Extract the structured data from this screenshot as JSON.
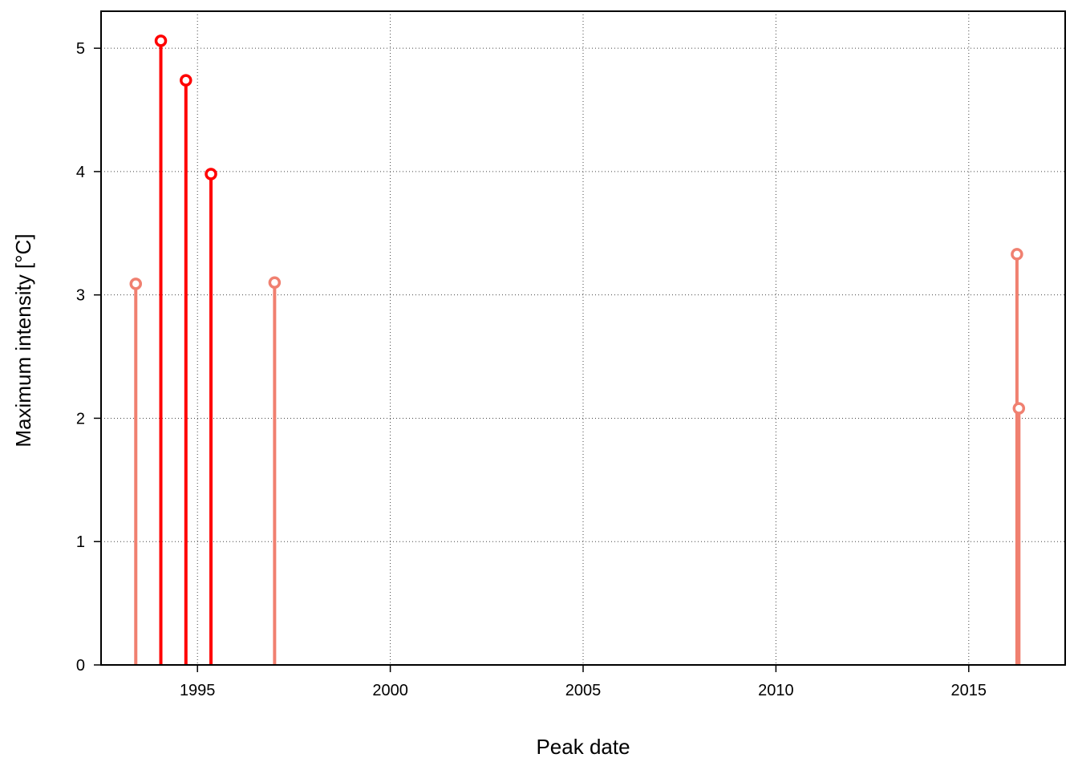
{
  "chart_data": {
    "type": "lollipop",
    "title": "",
    "xlabel": "Peak date",
    "ylabel": "Maximum intensity [°C]",
    "xlim": [
      1992.5,
      2017.5
    ],
    "ylim": [
      0,
      5.3
    ],
    "x_ticks": [
      1995,
      2000,
      2005,
      2010,
      2015
    ],
    "y_ticks": [
      0,
      1,
      2,
      3,
      4,
      5
    ],
    "grid": true,
    "legend": "none",
    "colors": {
      "strong": "#ff0000",
      "moderate": "#f08070"
    },
    "points": [
      {
        "x": 1993.4,
        "y": 3.09,
        "category": "moderate"
      },
      {
        "x": 1994.05,
        "y": 5.06,
        "category": "strong"
      },
      {
        "x": 1994.7,
        "y": 4.74,
        "category": "strong"
      },
      {
        "x": 1995.35,
        "y": 3.98,
        "category": "strong"
      },
      {
        "x": 1997.0,
        "y": 3.1,
        "category": "moderate"
      },
      {
        "x": 2016.25,
        "y": 3.33,
        "category": "moderate"
      },
      {
        "x": 2016.3,
        "y": 2.08,
        "category": "moderate"
      }
    ]
  }
}
